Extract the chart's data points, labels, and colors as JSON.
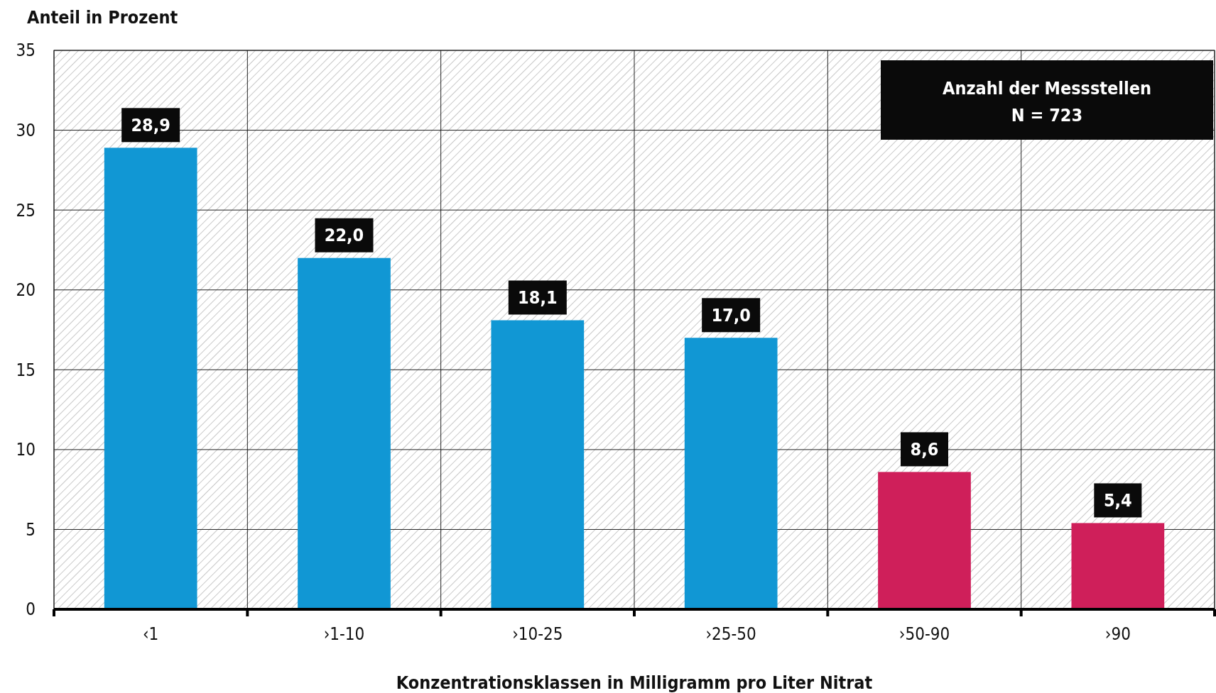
{
  "chart_data": {
    "type": "bar",
    "ylabel": "Anteil in Prozent",
    "xlabel": "Konzentrationsklassen in Milligramm pro Liter Nitrat",
    "categories": [
      "‹1",
      "›1-10",
      "›10-25",
      "›25-50",
      "›50-90",
      "›90"
    ],
    "values": [
      28.9,
      22.0,
      18.1,
      17.0,
      8.6,
      5.4
    ],
    "value_labels": [
      "28,9",
      "22,0",
      "18,1",
      "17,0",
      "8,6",
      "5,4"
    ],
    "colors": [
      "#1197d4",
      "#1197d4",
      "#1197d4",
      "#1197d4",
      "#cf1f5a",
      "#cf1f5a"
    ],
    "ylim": [
      0,
      35
    ],
    "yticks": [
      0,
      5,
      10,
      15,
      20,
      25,
      30,
      35
    ],
    "grid": true,
    "annotations": [
      "Anzahl der Messstellen",
      "N = 723"
    ]
  }
}
